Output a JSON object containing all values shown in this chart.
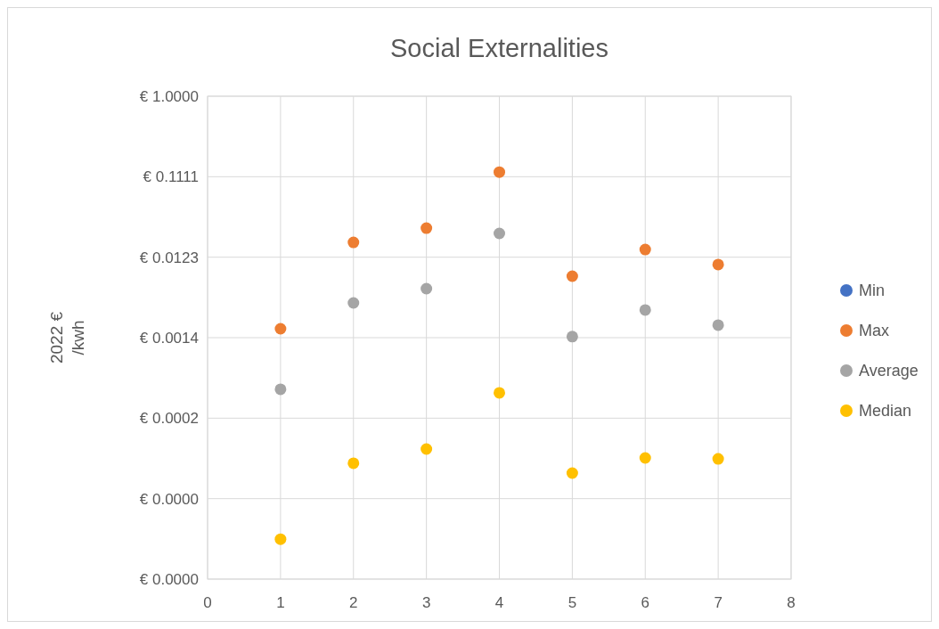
{
  "chart_data": {
    "type": "scatter",
    "title": "Social Externalities",
    "ylabel": "2022 € /kwh",
    "log": "y",
    "grid": true,
    "legend": "right",
    "marker": "circle",
    "x": [
      1,
      2,
      3,
      4,
      5,
      6,
      7
    ],
    "xlim": [
      0,
      8
    ],
    "xticks": [
      0,
      1,
      2,
      3,
      4,
      5,
      6,
      7,
      8
    ],
    "ylim": [
      1.88168e-06,
      1
    ],
    "yticks": [
      {
        "value": 1.88168e-06,
        "label": "€ 0.0000"
      },
      {
        "value": 1.69351e-05,
        "label": "€ 0.0000"
      },
      {
        "value": 0.000152416,
        "label": "€ 0.0002"
      },
      {
        "value": 0.00137174,
        "label": "€ 0.0014"
      },
      {
        "value": 0.0123457,
        "label": "€ 0.0123"
      },
      {
        "value": 0.111111,
        "label": "€ 0.1111"
      },
      {
        "value": 1,
        "label": "€ 1.0000"
      }
    ],
    "series": [
      {
        "name": "Min",
        "color": "#4472c4",
        "values": [
          null,
          null,
          null,
          null,
          null,
          null,
          null
        ]
      },
      {
        "name": "Max",
        "color": "#ed7d31",
        "values": [
          0.00175,
          0.0185,
          0.0273,
          0.126,
          0.00735,
          0.0152,
          0.0101
        ]
      },
      {
        "name": "Average",
        "color": "#a5a5a5",
        "values": [
          0.000335,
          0.00354,
          0.00523,
          0.0236,
          0.00141,
          0.00292,
          0.00193
        ]
      },
      {
        "name": "Median",
        "color": "#ffc000",
        "values": [
          5.6e-06,
          4.45e-05,
          6.56e-05,
          0.000304,
          3.4e-05,
          5.14e-05,
          5.01e-05
        ]
      }
    ]
  }
}
